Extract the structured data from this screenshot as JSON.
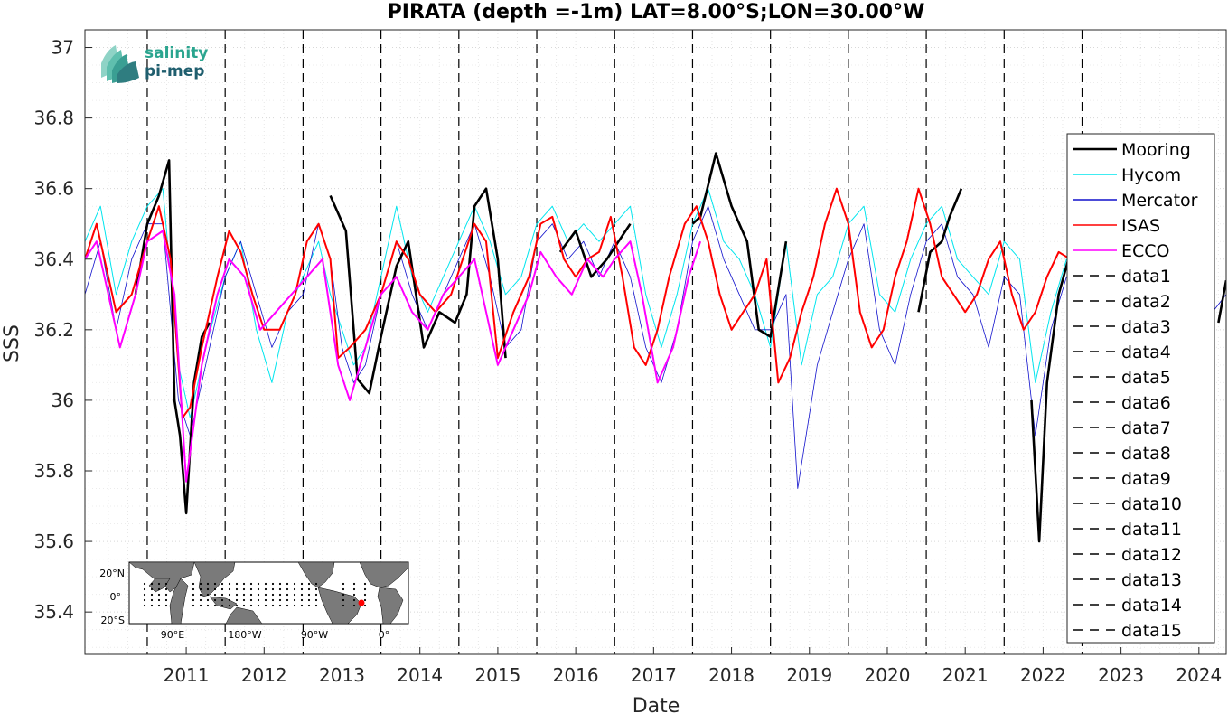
{
  "chart_data": {
    "type": "line",
    "title": "PIRATA (depth =-1m) LAT=8.00°S;LON=30.00°W",
    "xlabel": "Date",
    "ylabel": "SSS",
    "xlim": [
      2010.2,
      2024.85
    ],
    "ylim": [
      35.28,
      37.05
    ],
    "x_ticks": [
      "2011",
      "2012",
      "2013",
      "2014",
      "2015",
      "2016",
      "2017",
      "2018",
      "2019",
      "2020",
      "2021",
      "2022",
      "2023",
      "2024"
    ],
    "y_ticks": [
      "37",
      "36.8",
      "36.6",
      "36.4",
      "36.2",
      "36",
      "35.8",
      "35.6",
      "35.4"
    ],
    "grid": true,
    "legend_position": "right",
    "vertical_markers": [
      2011.0,
      2012.0,
      2013.0,
      2014.0,
      2015.0,
      2016.0,
      2017.0,
      2018.0,
      2019.0,
      2020.0,
      2021.0,
      2022.0,
      2023.0
    ],
    "series": [
      {
        "name": "Mooring",
        "color": "#000000",
        "x": [
          2010.85,
          2011.0,
          2011.15,
          2011.28,
          2011.35,
          2011.42,
          2011.5,
          2011.6,
          2011.7,
          2011.8,
          null,
          2013.35,
          2013.55,
          2013.7,
          2013.85,
          2014.0,
          2014.2,
          2014.35,
          2014.55,
          2014.75,
          2014.95,
          2015.1,
          2015.2,
          2015.35,
          2015.5,
          2015.6,
          null,
          2016.3,
          2016.5,
          2016.7,
          2016.9,
          2017.05,
          2017.2,
          null,
          2018.0,
          2018.1,
          2018.3,
          2018.5,
          2018.7,
          2018.85,
          2019.0,
          2019.2,
          null,
          2020.9,
          2021.05,
          2021.2,
          2021.3,
          2021.45,
          null,
          2022.35,
          2022.45,
          2022.55,
          2022.7,
          2022.85,
          2022.95,
          null,
          2024.75,
          2024.85
        ],
        "y": [
          36.3,
          36.5,
          36.58,
          36.68,
          36.0,
          35.9,
          35.68,
          36.05,
          36.18,
          36.22,
          null,
          36.58,
          36.48,
          36.06,
          36.02,
          36.18,
          36.38,
          36.45,
          36.15,
          36.25,
          36.22,
          36.3,
          36.55,
          36.6,
          36.4,
          36.12,
          null,
          36.42,
          36.48,
          36.35,
          36.4,
          36.45,
          36.5,
          null,
          36.5,
          36.52,
          36.7,
          36.55,
          36.45,
          36.2,
          36.18,
          36.45,
          null,
          36.25,
          36.42,
          36.45,
          36.52,
          36.6,
          null,
          36.0,
          35.6,
          36.05,
          36.3,
          36.42,
          36.45,
          null,
          36.22,
          36.34
        ]
      },
      {
        "name": "Hycom",
        "color": "#00e5ee",
        "x": [
          2010.2,
          2010.4,
          2010.6,
          2010.8,
          2011.0,
          2011.2,
          2011.4,
          2011.55,
          2011.75,
          2012.0,
          2012.2,
          2012.4,
          2012.6,
          2012.8,
          2013.0,
          2013.2,
          2013.35,
          2013.5,
          2013.65,
          2013.8,
          2014.0,
          2014.2,
          2014.4,
          2014.6,
          2014.8,
          2015.0,
          2015.2,
          2015.4,
          2015.6,
          2015.8,
          2016.0,
          2016.2,
          2016.4,
          2016.6,
          2016.8,
          2017.0,
          2017.2,
          2017.4,
          2017.6,
          2017.8,
          2018.0,
          2018.2,
          2018.4,
          2018.6,
          2018.8,
          2019.0,
          2019.2,
          2019.4,
          2019.6,
          2019.8,
          2020.0,
          2020.2,
          2020.4,
          2020.6,
          2020.8,
          2021.0,
          2021.2,
          2021.4,
          2021.6,
          2021.8,
          2022.0,
          2022.2,
          2022.4,
          2022.6,
          2022.8
        ],
        "y": [
          36.45,
          36.55,
          36.3,
          36.45,
          36.55,
          36.6,
          36.1,
          35.95,
          36.15,
          36.35,
          36.45,
          36.2,
          36.05,
          36.25,
          36.35,
          36.45,
          36.3,
          36.2,
          36.1,
          36.15,
          36.35,
          36.55,
          36.35,
          36.25,
          36.35,
          36.45,
          36.55,
          36.45,
          36.3,
          36.35,
          36.5,
          36.55,
          36.45,
          36.5,
          36.45,
          36.5,
          36.55,
          36.3,
          36.15,
          36.3,
          36.5,
          36.6,
          36.45,
          36.4,
          36.3,
          36.15,
          36.45,
          36.1,
          36.3,
          36.35,
          36.5,
          36.55,
          36.3,
          36.25,
          36.4,
          36.5,
          36.55,
          36.4,
          36.35,
          36.3,
          36.45,
          36.4,
          36.05,
          36.25,
          36.4
        ]
      },
      {
        "name": "Mercator",
        "color": "#1010cc",
        "x": [
          2010.2,
          2010.4,
          2010.6,
          2010.8,
          2011.0,
          2011.2,
          2011.4,
          2011.55,
          2011.75,
          2012.0,
          2012.2,
          2012.4,
          2012.6,
          2012.8,
          2013.0,
          2013.2,
          2013.35,
          2013.5,
          2013.65,
          2013.8,
          2014.0,
          2014.2,
          2014.4,
          2014.6,
          2014.8,
          2015.0,
          2015.2,
          2015.4,
          2015.6,
          2015.8,
          2016.0,
          2016.2,
          2016.4,
          2016.6,
          2016.8,
          2017.0,
          2017.2,
          2017.4,
          2017.6,
          2017.8,
          2018.0,
          2018.2,
          2018.4,
          2018.6,
          2018.8,
          2019.0,
          2019.2,
          2019.35,
          2019.6,
          2019.8,
          2020.0,
          2020.2,
          2020.4,
          2020.6,
          2020.8,
          2021.0,
          2021.2,
          2021.4,
          2021.6,
          2021.8,
          2022.0,
          2022.2,
          2022.4,
          2022.6,
          2022.8,
          2023.0,
          2023.3,
          2023.6,
          2023.9,
          2024.2,
          2024.5,
          2024.85
        ],
        "y": [
          36.3,
          36.45,
          36.2,
          36.4,
          36.5,
          36.5,
          36.0,
          35.9,
          36.1,
          36.35,
          36.45,
          36.3,
          36.15,
          36.25,
          36.3,
          36.5,
          36.4,
          36.15,
          36.05,
          36.1,
          36.3,
          36.45,
          36.3,
          36.2,
          36.3,
          36.4,
          36.5,
          36.35,
          36.15,
          36.2,
          36.45,
          36.5,
          36.4,
          36.45,
          36.35,
          36.45,
          36.35,
          36.15,
          36.05,
          36.2,
          36.45,
          36.55,
          36.4,
          36.3,
          36.2,
          36.2,
          36.3,
          35.75,
          36.1,
          36.25,
          36.4,
          36.5,
          36.2,
          36.1,
          36.3,
          36.45,
          36.5,
          36.35,
          36.3,
          36.15,
          36.35,
          36.3,
          35.9,
          36.2,
          36.35,
          36.3,
          36.25,
          36.3,
          36.2,
          36.25,
          36.2,
          36.3
        ]
      },
      {
        "name": "ISAS",
        "color": "#ff0000",
        "x": [
          2010.2,
          2010.35,
          2010.5,
          2010.6,
          2010.8,
          2011.0,
          2011.15,
          2011.3,
          2011.45,
          2011.55,
          2011.7,
          2011.9,
          2012.05,
          2012.2,
          2012.35,
          2012.5,
          2012.7,
          2012.9,
          2013.05,
          2013.2,
          2013.35,
          2013.45,
          2013.6,
          2013.8,
          2014.0,
          2014.2,
          2014.35,
          2014.5,
          2014.7,
          2014.9,
          2015.05,
          2015.2,
          2015.35,
          2015.5,
          2015.7,
          2015.9,
          2016.05,
          2016.2,
          2016.35,
          2016.5,
          2016.65,
          2016.8,
          2016.95,
          2017.1,
          2017.25,
          2017.4,
          2017.55,
          2017.7,
          2017.9,
          2018.05,
          2018.2,
          2018.35,
          2018.5,
          2018.65,
          2018.8,
          2018.95,
          2019.1,
          2019.25,
          2019.4,
          2019.55,
          2019.7,
          2019.85,
          2020.0,
          2020.15,
          2020.3,
          2020.45,
          2020.6,
          2020.75,
          2020.9,
          2021.05,
          2021.2,
          2021.35,
          2021.5,
          2021.65,
          2021.8,
          2021.95,
          2022.1,
          2022.25,
          2022.4,
          2022.55,
          2022.7,
          2022.85
        ],
        "y": [
          36.4,
          36.5,
          36.35,
          36.25,
          36.3,
          36.45,
          36.55,
          36.4,
          35.95,
          35.98,
          36.15,
          36.35,
          36.48,
          36.42,
          36.3,
          36.2,
          36.2,
          36.3,
          36.45,
          36.5,
          36.4,
          36.12,
          36.15,
          36.2,
          36.3,
          36.45,
          36.4,
          36.3,
          36.25,
          36.3,
          36.4,
          36.5,
          36.45,
          36.12,
          36.25,
          36.35,
          36.5,
          36.52,
          36.4,
          36.35,
          36.4,
          36.42,
          36.52,
          36.35,
          36.15,
          36.1,
          36.2,
          36.35,
          36.5,
          36.55,
          36.45,
          36.3,
          36.2,
          36.25,
          36.3,
          36.4,
          36.05,
          36.12,
          36.25,
          36.35,
          36.5,
          36.6,
          36.5,
          36.25,
          36.15,
          36.2,
          36.35,
          36.45,
          36.6,
          36.5,
          36.35,
          36.3,
          36.25,
          36.3,
          36.4,
          36.45,
          36.3,
          36.2,
          36.25,
          36.35,
          36.42,
          36.4
        ]
      },
      {
        "name": "ECCO",
        "color": "#ff00ff",
        "x": [
          2010.2,
          2010.35,
          2010.5,
          2010.65,
          2010.85,
          2011.0,
          2011.2,
          2011.35,
          2011.5,
          2011.7,
          2011.9,
          2012.05,
          2012.25,
          2012.45,
          2012.65,
          2012.85,
          2013.05,
          2013.25,
          2013.45,
          2013.6,
          2013.8,
          2014.0,
          2014.2,
          2014.4,
          2014.6,
          2014.8,
          2015.0,
          2015.2,
          2015.35,
          2015.5,
          2015.7,
          2015.9,
          2016.05,
          2016.25,
          2016.45,
          2016.65,
          2016.85,
          2017.0,
          2017.2,
          2017.35,
          2017.55,
          2017.75,
          2017.95,
          2018.1
        ],
        "y": [
          36.4,
          36.45,
          36.3,
          36.15,
          36.3,
          36.45,
          36.48,
          36.3,
          35.77,
          36.1,
          36.3,
          36.4,
          36.35,
          36.2,
          36.25,
          36.3,
          36.35,
          36.4,
          36.1,
          36.0,
          36.15,
          36.3,
          36.35,
          36.25,
          36.2,
          36.3,
          36.35,
          36.4,
          36.25,
          36.1,
          36.2,
          36.3,
          36.42,
          36.35,
          36.3,
          36.4,
          36.35,
          36.4,
          36.45,
          36.3,
          36.05,
          36.15,
          36.35,
          36.45
        ]
      }
    ]
  },
  "legend": {
    "entries": [
      {
        "label": "Mooring",
        "color": "#000000",
        "style": "solid"
      },
      {
        "label": "Hycom",
        "color": "#00e5ee",
        "style": "solid"
      },
      {
        "label": "Mercator",
        "color": "#1010cc",
        "style": "solid"
      },
      {
        "label": "ISAS",
        "color": "#ff0000",
        "style": "solid"
      },
      {
        "label": "ECCO",
        "color": "#ff00ff",
        "style": "solid"
      },
      {
        "label": "data1",
        "color": "#000000",
        "style": "dashed"
      },
      {
        "label": "data2",
        "color": "#000000",
        "style": "dashed"
      },
      {
        "label": "data3",
        "color": "#000000",
        "style": "dashed"
      },
      {
        "label": "data4",
        "color": "#000000",
        "style": "dashed"
      },
      {
        "label": "data5",
        "color": "#000000",
        "style": "dashed"
      },
      {
        "label": "data6",
        "color": "#000000",
        "style": "dashed"
      },
      {
        "label": "data7",
        "color": "#000000",
        "style": "dashed"
      },
      {
        "label": "data8",
        "color": "#000000",
        "style": "dashed"
      },
      {
        "label": "data9",
        "color": "#000000",
        "style": "dashed"
      },
      {
        "label": "data10",
        "color": "#000000",
        "style": "dashed"
      },
      {
        "label": "data11",
        "color": "#000000",
        "style": "dashed"
      },
      {
        "label": "data12",
        "color": "#000000",
        "style": "dashed"
      },
      {
        "label": "data13",
        "color": "#000000",
        "style": "dashed"
      },
      {
        "label": "data14",
        "color": "#000000",
        "style": "dashed"
      },
      {
        "label": "data15",
        "color": "#000000",
        "style": "dashed"
      }
    ]
  },
  "logo": {
    "line1": "salinity",
    "line2": "pi-mep",
    "color1": "#2ba58f",
    "color2": "#1f5e6e"
  },
  "inset_map": {
    "lat_labels": [
      "20°N",
      "0°",
      "20°S"
    ],
    "lon_labels": [
      "90°E",
      "180°W",
      "90°W",
      "0°"
    ],
    "station_marker_color": "#ff0000"
  }
}
